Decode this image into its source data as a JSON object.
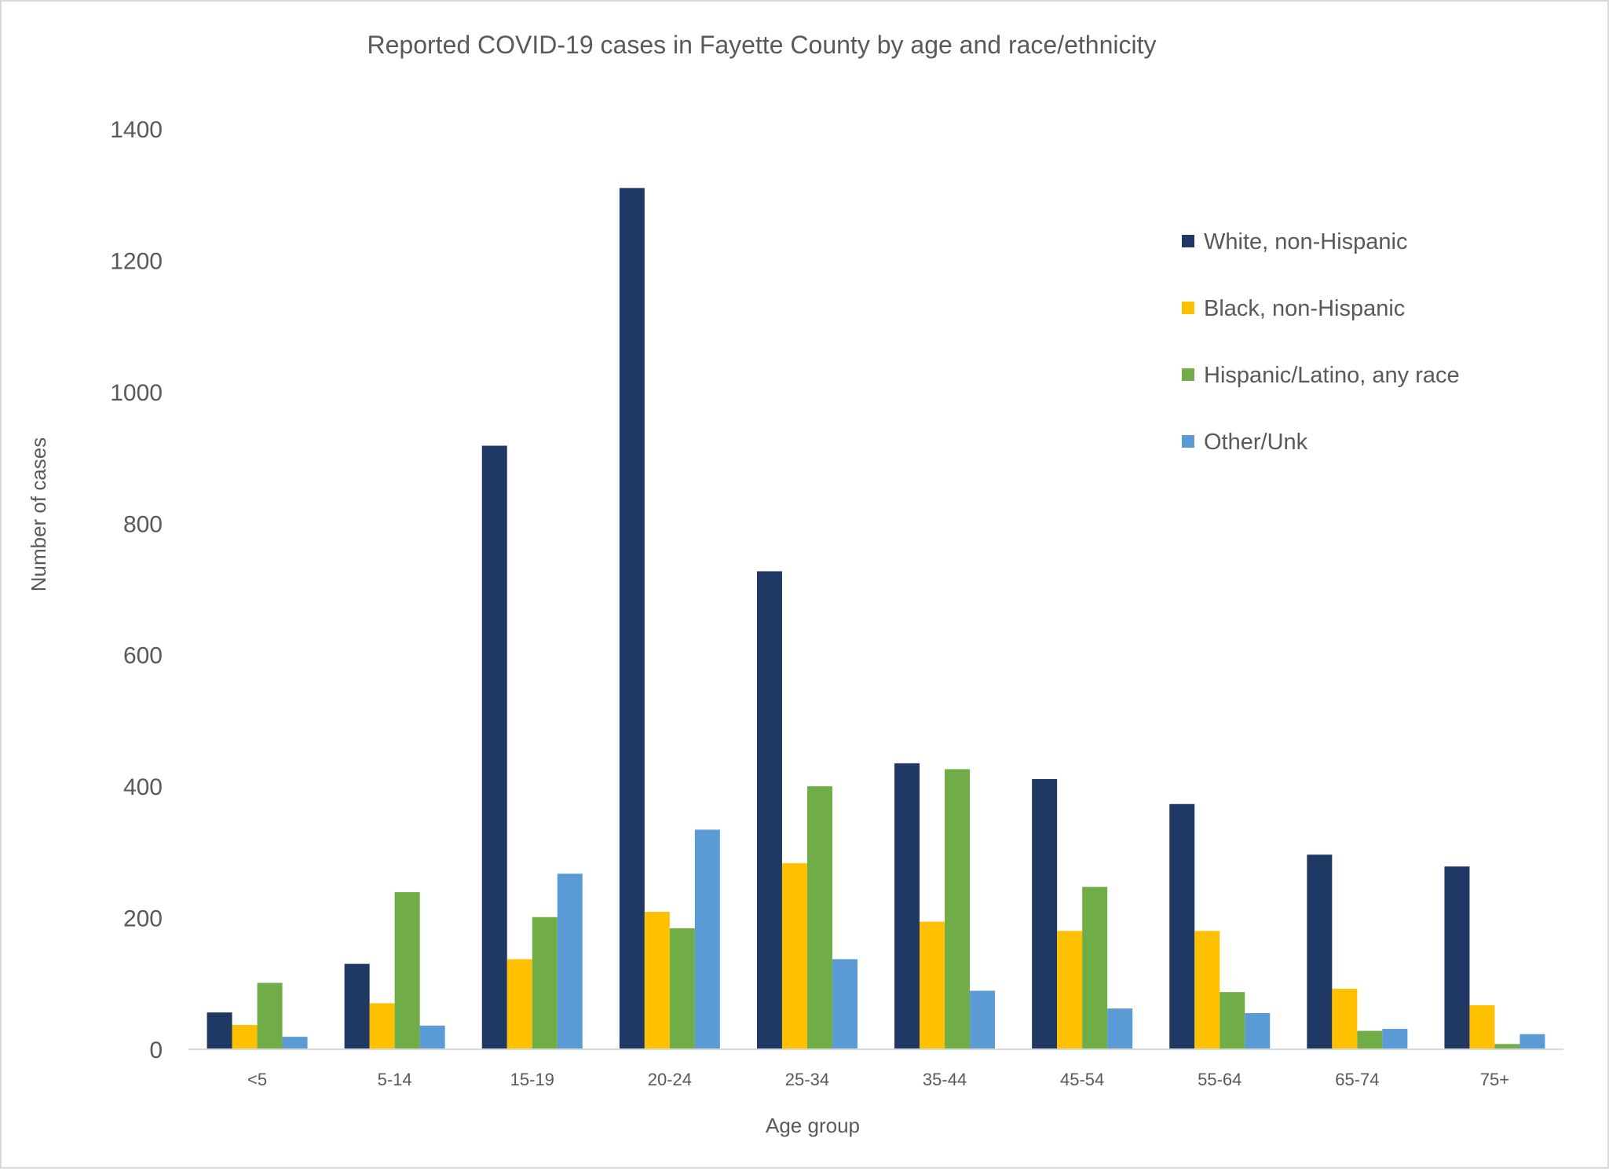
{
  "chart_data": {
    "type": "bar",
    "title": "Reported COVID-19 cases in Fayette County by age and race/ethnicity",
    "xlabel": "Age group",
    "ylabel": "Number of cases",
    "ylim": [
      0,
      1400
    ],
    "yticks": [
      0,
      200,
      400,
      600,
      800,
      1000,
      1200,
      1400
    ],
    "grid": false,
    "legend_position": "right",
    "categories": [
      "<5",
      "5-14",
      "15-19",
      "20-24",
      "25-34",
      "35-44",
      "45-54",
      "55-64",
      "65-74",
      "75+"
    ],
    "series": [
      {
        "name": "White, non-Hispanic",
        "color": "#203864",
        "values": [
          56,
          130,
          918,
          1310,
          727,
          435,
          411,
          373,
          296,
          278
        ]
      },
      {
        "name": "Black, non-Hispanic",
        "color": "#FFC000",
        "values": [
          37,
          70,
          137,
          209,
          283,
          194,
          180,
          180,
          92,
          67
        ]
      },
      {
        "name": "Hispanic/Latino, any race",
        "color": "#70AD47",
        "values": [
          101,
          239,
          201,
          184,
          400,
          426,
          247,
          87,
          28,
          8
        ]
      },
      {
        "name": "Other/Unk",
        "color": "#5B9BD5",
        "values": [
          19,
          36,
          267,
          334,
          137,
          89,
          62,
          55,
          31,
          23
        ]
      }
    ]
  }
}
